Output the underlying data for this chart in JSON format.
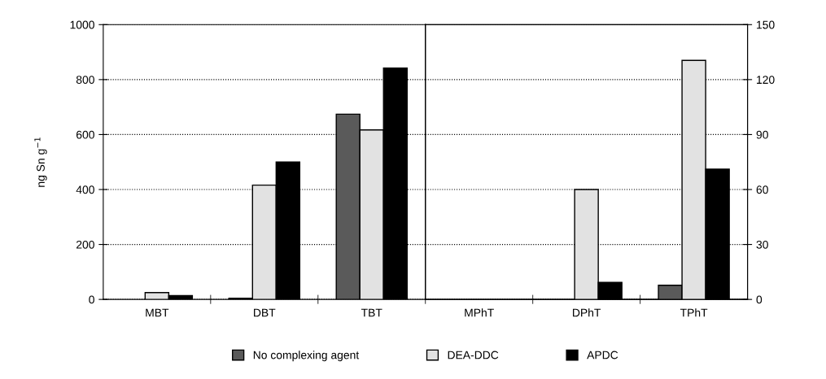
{
  "chart_data": [
    {
      "type": "bar",
      "ylabel": "ng Sn g$^{−1}$",
      "categories": [
        "MBT",
        "DBT",
        "TBT"
      ],
      "series": [
        {
          "name": "No complexing agent",
          "color": "#5a5a5a",
          "values": [
            null,
            4,
            674
          ]
        },
        {
          "name": "DEA-DDC",
          "color": "#e2e2e2",
          "values": [
            25,
            416,
            617
          ]
        },
        {
          "name": "APDC",
          "color": "#000000",
          "values": [
            14,
            500,
            842
          ]
        }
      ],
      "ylim": [
        0,
        1000
      ],
      "yticks": [
        0,
        200,
        400,
        600,
        800,
        1000
      ],
      "grid": "y",
      "legend": "bottom"
    },
    {
      "type": "bar",
      "categories": [
        "MPhT",
        "DPhT",
        "TPhT"
      ],
      "series": [
        {
          "color": "#5a5a5a",
          "axis": "y2",
          "values": [
            null,
            null,
            7.7
          ]
        },
        {
          "color": "#e2e2e2",
          "axis": "y2",
          "values": [
            null,
            60,
            130.5
          ]
        },
        {
          "color": "#000000",
          "axis": "y2",
          "values": [
            null,
            9.3,
            71.1
          ]
        }
      ],
      "y2lim": [
        0,
        150
      ],
      "y2ticks": [
        0,
        30,
        60,
        90,
        120,
        150
      ],
      "grid": "y"
    }
  ]
}
